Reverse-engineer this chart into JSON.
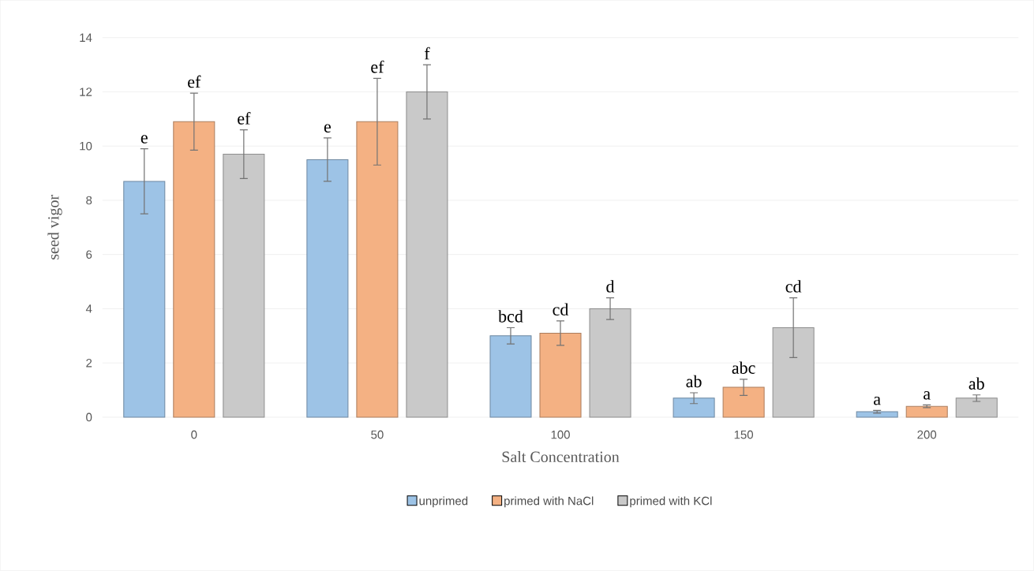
{
  "chart_data": {
    "type": "bar",
    "xlabel": "Salt Concentration",
    "ylabel": "seed vigor",
    "categories": [
      "0",
      "50",
      "100",
      "150",
      "200"
    ],
    "series": [
      {
        "name": "unprimed",
        "color": "#9dc3e6",
        "values": [
          8.7,
          9.5,
          3.0,
          0.7,
          0.2
        ],
        "errors": [
          1.2,
          0.8,
          0.3,
          0.2,
          0.05
        ],
        "value_labels": [
          "e",
          "e",
          "bcd",
          "ab",
          "a"
        ]
      },
      {
        "name": "primed with NaCl",
        "color": "#f4b183",
        "values": [
          10.9,
          10.9,
          3.1,
          1.1,
          0.4
        ],
        "errors": [
          1.05,
          1.6,
          0.45,
          0.3,
          0.05
        ],
        "value_labels": [
          "ef",
          "ef",
          "cd",
          "abc",
          "a"
        ]
      },
      {
        "name": "primed with KCl",
        "color": "#c9c9c9",
        "values": [
          9.7,
          12.0,
          4.0,
          3.3,
          0.7
        ],
        "errors": [
          0.9,
          1.0,
          0.4,
          1.1,
          0.12
        ],
        "value_labels": [
          "ef",
          "f",
          "d",
          "cd",
          "ab"
        ]
      }
    ],
    "ylim": [
      0,
      14
    ],
    "yticks": [
      0,
      2,
      4,
      6,
      8,
      10,
      12,
      14
    ],
    "grid": "y",
    "legend": "bottom"
  }
}
